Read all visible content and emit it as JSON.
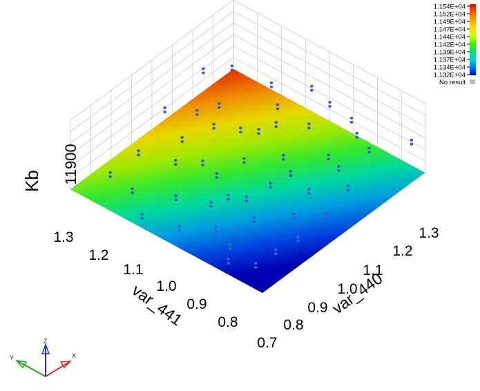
{
  "chart_data": {
    "type": "surface3d",
    "z_axis": {
      "label": "Kb",
      "tick_labels": [
        "11900"
      ]
    },
    "x_axis": {
      "label": "var_440",
      "tick_labels": [
        "0.7",
        "0.8",
        "0.9",
        "1.0",
        "1.1",
        "1.2",
        "1.3"
      ],
      "range": [
        0.7,
        1.3
      ]
    },
    "y_axis": {
      "label": "var_441",
      "tick_labels": [
        "0.8",
        "0.9",
        "1.0",
        "1.1",
        "1.2",
        "1.3"
      ],
      "range": [
        0.7,
        1.3
      ]
    },
    "surface": {
      "z_min": 11320,
      "z_max": 11540,
      "corner_values": {
        "var440_0.7_var441_0.7": 11320,
        "var440_1.3_var441_0.7": 11400,
        "var440_0.7_var441_1.3": 11450,
        "var440_1.3_var441_1.3": 11540
      }
    },
    "colorbar": {
      "labels": [
        "1.154E+04",
        "1.152E+04",
        "1.149E+04",
        "1.147E+04",
        "1.144E+04",
        "1.142E+04",
        "1.139E+04",
        "1.137E+04",
        "1.134E+04",
        "1.132E+04"
      ],
      "colors": [
        "#e00000",
        "#ff5a00",
        "#ffa000",
        "#ffdc00",
        "#c8ff00",
        "#50f000",
        "#00e070",
        "#00d0d0",
        "#0078ff",
        "#0000c0"
      ],
      "no_result_label": "No result",
      "no_result_color": "#bdbdbd"
    },
    "triad": {
      "x_label": "X",
      "y_label": "Y",
      "z_label": "Z"
    },
    "point_color": "#3a5fcd",
    "grid": true
  }
}
